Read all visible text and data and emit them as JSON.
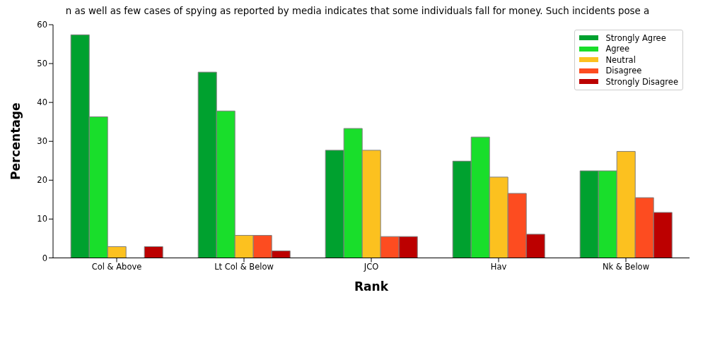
{
  "chart_data": {
    "type": "bar",
    "title": "n as well as few cases of spying as reported by media indicates that some individuals fall for money. Such incidents pose a",
    "xlabel": "Rank",
    "ylabel": "Percentage",
    "categories": [
      "Col & Above",
      "Lt Col & Below",
      "JCO",
      "Hav",
      "Nk & Below"
    ],
    "series": [
      {
        "name": "Strongly Agree",
        "color": "#00a12f",
        "values": [
          57.4,
          47.8,
          27.7,
          24.9,
          22.4
        ]
      },
      {
        "name": "Agree",
        "color": "#19de2b",
        "values": [
          36.3,
          37.8,
          33.3,
          31.1,
          22.4
        ]
      },
      {
        "name": "Neutral",
        "color": "#fcc11f",
        "values": [
          2.9,
          5.8,
          27.7,
          20.8,
          27.4
        ]
      },
      {
        "name": "Disagree",
        "color": "#fd4c20",
        "values": [
          0,
          5.8,
          5.5,
          16.6,
          15.5
        ]
      },
      {
        "name": "Strongly Disagree",
        "color": "#bc0000",
        "values": [
          2.9,
          1.8,
          5.5,
          6.1,
          11.7
        ]
      }
    ],
    "ylim": [
      0,
      60
    ],
    "yticks": [
      0,
      10,
      20,
      30,
      40,
      50,
      60
    ],
    "grid": false,
    "legend": "top right"
  }
}
